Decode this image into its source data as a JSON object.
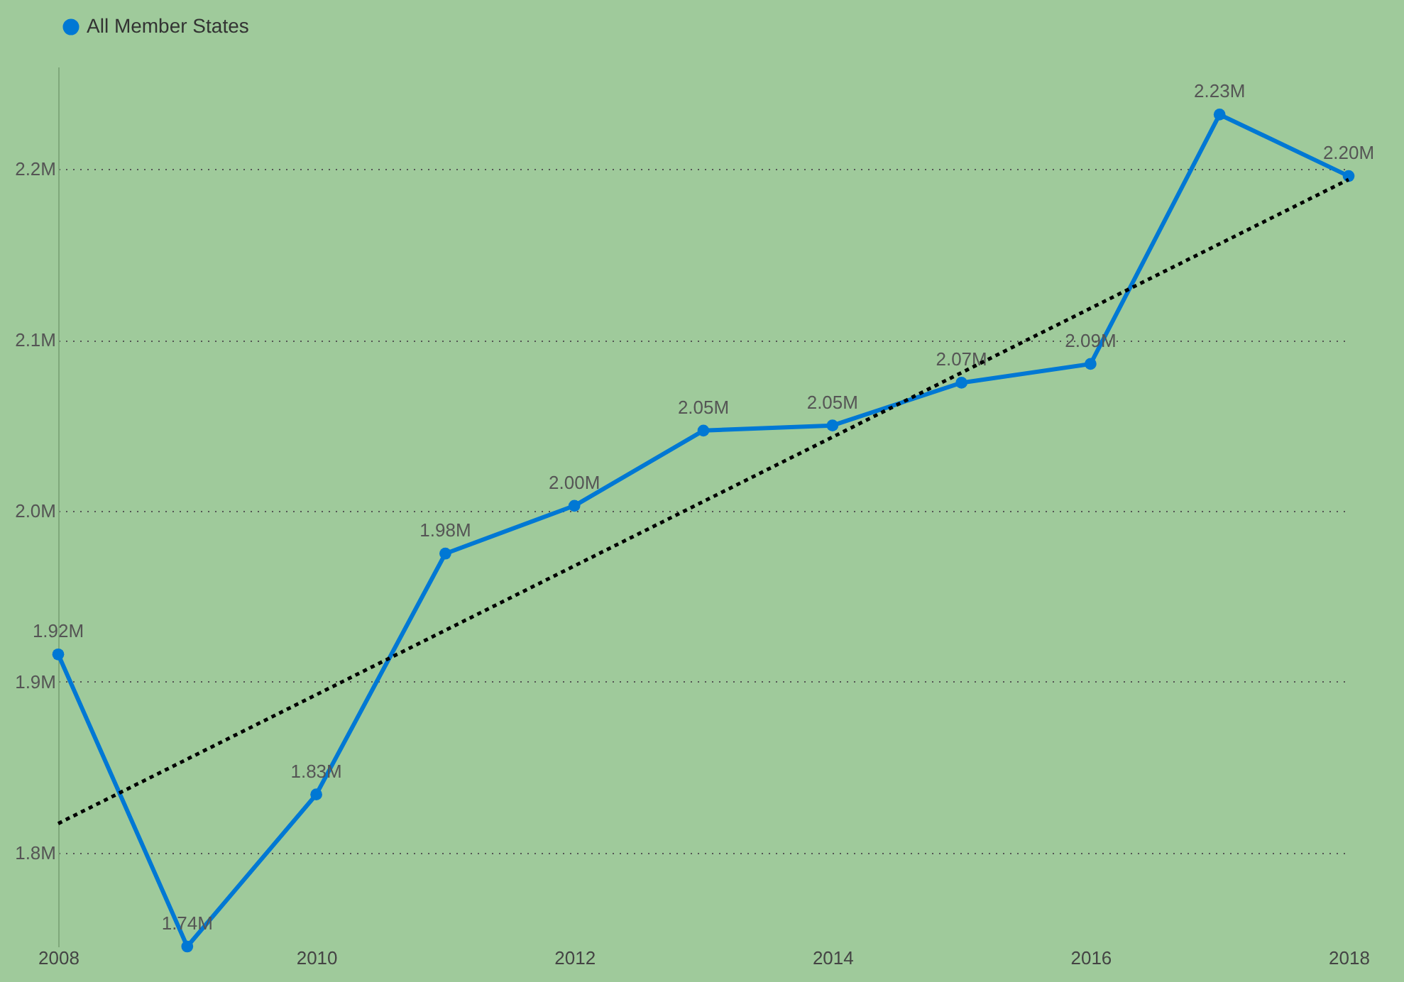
{
  "chart_data": {
    "type": "line",
    "x": [
      2008,
      2009,
      2010,
      2011,
      2012,
      2013,
      2014,
      2015,
      2016,
      2017,
      2018
    ],
    "series": [
      {
        "name": "All Member States",
        "color": "#0078d4",
        "values": [
          1.916,
          1.745,
          1.834,
          1.975,
          2.003,
          2.047,
          2.05,
          2.075,
          2.086,
          2.232,
          2.196
        ],
        "value_labels": [
          "1.92M",
          "1.74M",
          "1.83M",
          "1.98M",
          "2.00M",
          "2.05M",
          "2.05M",
          "2.07M",
          "2.09M",
          "2.23M",
          "2.20M"
        ],
        "marker": "circle"
      },
      {
        "type": "line",
        "color": "#000000",
        "x": [
          2008,
          2018
        ],
        "values": [
          1.817,
          2.194
        ],
        "line_style": "dotted",
        "marker": "none"
      }
    ],
    "xlim": [
      2008,
      2018
    ],
    "xticks": [
      2008,
      2010,
      2012,
      2014,
      2016,
      2018
    ],
    "ylim": [
      1.745,
      2.26
    ],
    "yticks": [
      {
        "value": 1.8,
        "label": "1.8M"
      },
      {
        "value": 1.9,
        "label": "1.9M"
      },
      {
        "value": 2.0,
        "label": "2.0M"
      },
      {
        "value": 2.1,
        "label": "2.1M"
      },
      {
        "value": 2.2,
        "label": "2.2M"
      }
    ],
    "grid": "y",
    "legend": "top",
    "line_style": "solid"
  }
}
